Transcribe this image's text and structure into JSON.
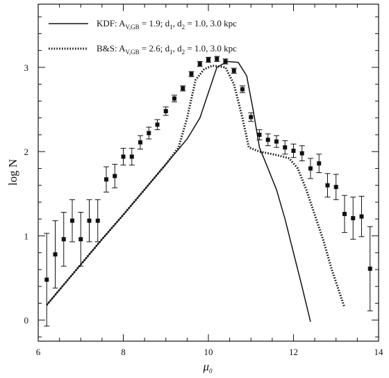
{
  "chart_data": {
    "type": "line",
    "xlabel": "μ",
    "xlabel_sub": "0",
    "ylabel": "log N",
    "xlim": [
      6,
      14
    ],
    "ylim": [
      -0.25,
      3.75
    ],
    "x_ticks": [
      6,
      8,
      10,
      12,
      14
    ],
    "x_tick_labels": [
      "6",
      "8",
      "10",
      "12",
      "14"
    ],
    "y_ticks": [
      0,
      1,
      2,
      3
    ],
    "y_tick_labels": [
      "0",
      "1",
      "2",
      "3"
    ],
    "legend_position": "top-left",
    "legend": [
      {
        "style": "solid",
        "parts": [
          {
            "t": "KDF: A"
          },
          {
            "t": "V,GB",
            "sub": true
          },
          {
            "t": " = 1.9; d"
          },
          {
            "t": "1",
            "sub": true
          },
          {
            "t": ", d"
          },
          {
            "t": "2",
            "sub": true
          },
          {
            "t": " = 1.0, 3.0 kpc"
          }
        ]
      },
      {
        "style": "dotted",
        "parts": [
          {
            "t": "B&S: A"
          },
          {
            "t": "V,GB",
            "sub": true
          },
          {
            "t": " = 2.6; d"
          },
          {
            "t": "1",
            "sub": true
          },
          {
            "t": ", d"
          },
          {
            "t": "2",
            "sub": true
          },
          {
            "t": " = 1.0, 3.0 kpc"
          }
        ]
      }
    ],
    "series": [
      {
        "style": "solid",
        "x": [
          6.2,
          6.6,
          7.0,
          7.5,
          8.0,
          8.5,
          9.0,
          9.5,
          9.8,
          10.0,
          10.2,
          10.45,
          10.7,
          10.9,
          11.05,
          11.2,
          11.4,
          11.6,
          11.8,
          12.0,
          12.2,
          12.4
        ],
        "y": [
          0.18,
          0.42,
          0.66,
          0.96,
          1.25,
          1.55,
          1.85,
          2.15,
          2.4,
          2.7,
          3.0,
          3.07,
          3.06,
          2.9,
          2.5,
          2.05,
          1.8,
          1.55,
          1.2,
          0.8,
          0.4,
          -0.02
        ]
      },
      {
        "style": "dotted",
        "x": [
          6.2,
          6.6,
          7.0,
          7.5,
          8.0,
          8.5,
          9.0,
          9.3,
          9.5,
          9.7,
          9.9,
          10.1,
          10.4,
          10.6,
          10.8,
          10.95,
          11.2,
          11.6,
          11.9,
          12.1,
          12.3,
          12.5,
          12.7,
          12.9,
          13.2
        ],
        "y": [
          0.18,
          0.42,
          0.66,
          0.96,
          1.25,
          1.55,
          1.85,
          2.05,
          2.4,
          2.85,
          2.98,
          3.02,
          3.0,
          2.8,
          2.4,
          2.05,
          2.0,
          1.96,
          1.92,
          1.8,
          1.55,
          1.25,
          0.95,
          0.6,
          0.15
        ]
      }
    ],
    "points": {
      "x": [
        6.2,
        6.4,
        6.6,
        6.8,
        7.0,
        7.2,
        7.4,
        7.6,
        7.8,
        8.0,
        8.2,
        8.4,
        8.6,
        8.8,
        9.0,
        9.2,
        9.4,
        9.6,
        9.8,
        10.0,
        10.2,
        10.4,
        10.6,
        10.8,
        11.0,
        11.2,
        11.4,
        11.6,
        11.8,
        12.0,
        12.2,
        12.4,
        12.6,
        12.8,
        13.0,
        13.2,
        13.4,
        13.6,
        13.8
      ],
      "y": [
        0.48,
        0.78,
        0.96,
        1.18,
        0.96,
        1.18,
        1.18,
        1.67,
        1.71,
        1.94,
        1.94,
        2.11,
        2.22,
        2.32,
        2.48,
        2.63,
        2.75,
        2.92,
        3.04,
        3.09,
        3.1,
        3.07,
        2.96,
        2.74,
        2.41,
        2.2,
        2.14,
        2.12,
        2.05,
        2.01,
        1.98,
        1.8,
        1.86,
        1.6,
        1.58,
        1.26,
        1.21,
        1.23,
        0.61
      ],
      "err": [
        0.55,
        0.4,
        0.32,
        0.25,
        0.32,
        0.25,
        0.25,
        0.15,
        0.14,
        0.1,
        0.1,
        0.08,
        0.07,
        0.06,
        0.05,
        0.04,
        0.03,
        0.03,
        0.03,
        0.03,
        0.03,
        0.03,
        0.03,
        0.04,
        0.05,
        0.06,
        0.07,
        0.07,
        0.08,
        0.08,
        0.09,
        0.12,
        0.11,
        0.14,
        0.15,
        0.22,
        0.25,
        0.24,
        0.5
      ]
    }
  }
}
